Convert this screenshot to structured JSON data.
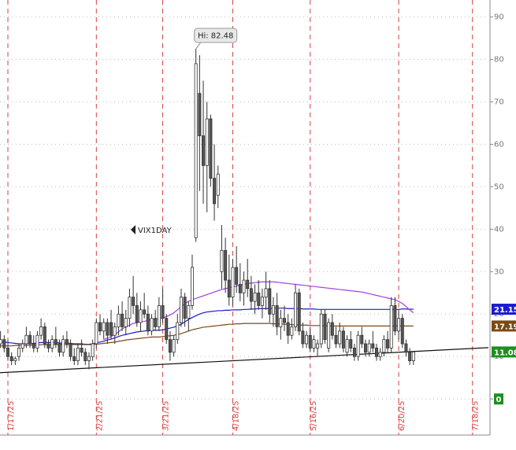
{
  "chart_data": {
    "type": "candlestick",
    "symbol": "VIX1DAY",
    "annotation": "Hi: 82.48",
    "categories": [
      null,
      null,
      "1/17/25",
      null,
      null,
      null,
      null,
      null,
      null,
      null,
      null,
      null,
      null,
      null,
      null,
      null,
      null,
      null,
      null,
      null,
      null,
      null,
      null,
      null,
      null,
      null,
      "2/21/25",
      null,
      null,
      null,
      null,
      null,
      null,
      null,
      null,
      null,
      null,
      null,
      null,
      null,
      null,
      null,
      null,
      null,
      "3/21/25",
      null,
      null,
      null,
      null,
      null,
      null,
      null,
      null,
      null,
      null,
      null,
      null,
      null,
      null,
      null,
      null,
      null,
      null,
      "4/18/25",
      null,
      null,
      null,
      null,
      null,
      null,
      null,
      null,
      null,
      null,
      null,
      null,
      null,
      null,
      null,
      null,
      null,
      null,
      null,
      null,
      "5/16/25",
      null,
      null,
      null,
      null,
      null,
      null,
      null,
      null,
      null,
      null,
      null,
      null,
      null,
      null,
      null,
      null,
      null,
      null,
      null,
      null,
      null,
      null,
      null,
      "6/20/25",
      null,
      null,
      null,
      null,
      null,
      null,
      null,
      null,
      null,
      null,
      null,
      null,
      null,
      null,
      null,
      null,
      null,
      null,
      null,
      "7/18/25"
    ],
    "open": [
      13,
      14,
      12,
      10,
      9,
      10,
      12,
      13,
      15,
      13,
      12,
      15,
      17,
      13,
      12,
      14,
      13,
      11,
      14,
      13,
      10,
      9,
      12,
      11,
      9,
      10,
      13,
      18,
      16,
      18,
      18,
      15,
      17,
      20,
      17,
      19,
      24,
      22,
      18,
      21,
      20,
      16,
      19,
      17,
      22,
      19,
      14,
      11,
      14,
      18,
      24,
      19,
      22,
      38,
      72,
      62,
      55,
      66,
      52,
      48,
      30,
      35,
      28,
      24,
      31,
      27,
      25,
      28,
      26,
      23,
      25,
      22,
      24,
      26,
      20,
      22,
      17,
      19,
      18,
      15,
      17,
      25,
      16,
      13,
      15,
      12,
      12,
      13,
      20,
      12,
      18,
      15,
      13,
      16,
      11,
      14,
      12,
      10,
      15,
      13,
      11,
      13,
      12,
      10,
      11,
      14,
      12,
      22,
      16,
      19,
      13,
      11,
      9,
      null,
      null,
      null,
      null,
      null,
      null,
      null,
      null,
      null,
      null,
      null,
      null,
      null,
      null,
      null,
      null
    ],
    "high": [
      16,
      15,
      14,
      11,
      10,
      13,
      14,
      17,
      16,
      15,
      16,
      19,
      18,
      14,
      15,
      17,
      14,
      15,
      16,
      14,
      12,
      13,
      14,
      12,
      11,
      14,
      19,
      20,
      19,
      19,
      21,
      18,
      22,
      23,
      21,
      26,
      29,
      25,
      23,
      25,
      22,
      20,
      21,
      24,
      26,
      20,
      16,
      15,
      20,
      26,
      25,
      23,
      34,
      82.48,
      81,
      75,
      70,
      67,
      60,
      55,
      41,
      38,
      34,
      33,
      36,
      32,
      30,
      33,
      29,
      27,
      28,
      26,
      30,
      28,
      24,
      25,
      21,
      22,
      20,
      19,
      27,
      26,
      18,
      16,
      17,
      15,
      14,
      21,
      21,
      19,
      20,
      17,
      18,
      17,
      15,
      16,
      13,
      16,
      17,
      14,
      14,
      16,
      13,
      12,
      15,
      16,
      24,
      24,
      21,
      20,
      14,
      12,
      11,
      null,
      null,
      null,
      null,
      null,
      null,
      null,
      null,
      null,
      null,
      null,
      null,
      null,
      null,
      null,
      null
    ],
    "low": [
      12,
      11,
      9,
      8,
      8,
      9,
      11,
      12,
      12,
      11,
      11,
      14,
      12,
      11,
      11,
      12,
      10,
      10,
      12,
      9,
      8,
      8,
      10,
      8,
      7,
      9,
      12,
      15,
      14,
      13,
      14,
      13,
      15,
      16,
      15,
      17,
      20,
      17,
      16,
      19,
      15,
      15,
      16,
      16,
      18,
      13,
      9,
      10,
      13,
      17,
      17,
      16,
      21,
      37,
      49,
      46,
      44,
      50,
      42,
      45,
      26,
      25,
      22,
      22,
      25,
      23,
      22,
      24,
      21,
      20,
      21,
      19,
      21,
      18,
      17,
      15,
      14,
      16,
      13,
      14,
      16,
      15,
      12,
      12,
      11,
      11,
      10,
      12,
      13,
      11,
      14,
      12,
      12,
      11,
      10,
      11,
      9,
      9,
      12,
      10,
      10,
      11,
      9,
      9,
      10,
      11,
      11,
      15,
      14,
      12,
      10,
      8,
      8,
      null,
      null,
      null,
      null,
      null,
      null,
      null,
      null,
      null,
      null,
      null,
      null,
      null,
      null,
      null,
      null
    ],
    "close": [
      14,
      12,
      10,
      9,
      9.5,
      12,
      13,
      15,
      13,
      12,
      15,
      17,
      13,
      12,
      14,
      13,
      11,
      14,
      13,
      10,
      9,
      12,
      11,
      9,
      10,
      13,
      18,
      16,
      18,
      15,
      15,
      17,
      20,
      17,
      19,
      24,
      22,
      18,
      21,
      20,
      16,
      19,
      17,
      22,
      19,
      14,
      11,
      14,
      18,
      24,
      19,
      22,
      31,
      79,
      62,
      55,
      66,
      52,
      46,
      53,
      35,
      28,
      24,
      31,
      27,
      25,
      28,
      26,
      23,
      25,
      22,
      24,
      26,
      20,
      22,
      17,
      19,
      18,
      15,
      17,
      25,
      16,
      13,
      15,
      12,
      14,
      13,
      20,
      14,
      18,
      15,
      13,
      16,
      12,
      14,
      12,
      10,
      15,
      13,
      11,
      13,
      12,
      10,
      11,
      14,
      12,
      22,
      16,
      19,
      13,
      11,
      9,
      11.08,
      null,
      null,
      null,
      null,
      null,
      null,
      null,
      null,
      null,
      null,
      null,
      null,
      null,
      null,
      null,
      null
    ],
    "up_color": "#ffffff",
    "down_color": "#555555",
    "candle_outline": "#333333",
    "last_price_color": "#1e8f1e",
    "overlays": [
      {
        "color": "#1c1ccc",
        "values": [
          13.5,
          13.4,
          13.3,
          13.2,
          13.1,
          13.0,
          13.0,
          13.0,
          13.1,
          13.1,
          13.2,
          13.3,
          13.3,
          13.3,
          13.3,
          13.3,
          13.2,
          13.2,
          13.2,
          13.1,
          13.0,
          13.0,
          13.0,
          12.9,
          12.9,
          13.0,
          13.2,
          13.4,
          13.6,
          13.9,
          14.1,
          14.4,
          14.7,
          15.0,
          15.2,
          15.4,
          15.6,
          15.8,
          15.9,
          16.0,
          16.1,
          16.2,
          16.2,
          16.2,
          16.3,
          16.5,
          16.7,
          16.9,
          17.2,
          17.6,
          18.2,
          18.7,
          19.2,
          19.6,
          20.0,
          20.3,
          20.5,
          20.6,
          20.7,
          20.8,
          20.8,
          20.9,
          20.9,
          21.0,
          21.0,
          21.0,
          21.1,
          21.1,
          21.2,
          21.2,
          21.3,
          21.3,
          21.3,
          21.3,
          21.4,
          21.4,
          21.4,
          21.4,
          21.3,
          21.3,
          21.3,
          21.3,
          21.2,
          21.2,
          21.2,
          21.2,
          21.1,
          21.1,
          21.1,
          21.1,
          21.1,
          21.1,
          21.1,
          21.1,
          21.1,
          21.1,
          21.1,
          21.1,
          21.1,
          21.1,
          21.1,
          21.1,
          21.1,
          21.1,
          21.1,
          21.1,
          21.1,
          21.1,
          21.1,
          21.2,
          21.2,
          21.15,
          21.15,
          null,
          null,
          null,
          null,
          null,
          null,
          null,
          null,
          null,
          null,
          null,
          null,
          null,
          null,
          null,
          null
        ],
        "tag": true
      },
      {
        "color": "#7a4a12",
        "values": [
          12.5,
          12.5,
          12.5,
          12.5,
          12.6,
          12.6,
          12.6,
          12.6,
          12.7,
          12.7,
          12.7,
          12.8,
          12.8,
          12.8,
          12.8,
          12.8,
          12.8,
          12.8,
          12.8,
          12.8,
          12.8,
          12.8,
          12.8,
          12.8,
          12.8,
          12.8,
          12.9,
          13.0,
          13.1,
          13.2,
          13.3,
          13.4,
          13.6,
          13.7,
          13.9,
          14.0,
          14.1,
          14.2,
          14.3,
          14.4,
          14.5,
          14.6,
          14.6,
          14.6,
          14.7,
          14.8,
          14.9,
          15.0,
          15.2,
          15.4,
          15.7,
          16.0,
          16.3,
          16.5,
          16.7,
          16.9,
          17.0,
          17.1,
          17.2,
          17.3,
          17.4,
          17.5,
          17.6,
          17.6,
          17.7,
          17.7,
          17.8,
          17.8,
          17.8,
          17.8,
          17.8,
          17.8,
          17.8,
          17.8,
          17.7,
          17.7,
          17.7,
          17.6,
          17.6,
          17.5,
          17.5,
          17.4,
          17.4,
          17.4,
          17.3,
          17.3,
          17.3,
          17.3,
          17.2,
          17.2,
          17.2,
          17.2,
          17.2,
          17.2,
          17.2,
          17.2,
          17.2,
          17.2,
          17.2,
          17.2,
          17.2,
          17.2,
          17.2,
          17.2,
          17.2,
          17.2,
          17.2,
          17.2,
          17.2,
          17.2,
          17.2,
          17.19,
          17.19,
          null,
          null,
          null,
          null,
          null,
          null,
          null,
          null,
          null,
          null,
          null,
          null,
          null,
          null,
          null,
          null
        ],
        "tag": true
      },
      {
        "color": "#a040e0",
        "values": [
          null,
          null,
          null,
          null,
          null,
          null,
          null,
          null,
          null,
          null,
          null,
          null,
          null,
          null,
          null,
          null,
          null,
          null,
          null,
          null,
          null,
          null,
          null,
          null,
          null,
          null,
          null,
          null,
          14.0,
          14.3,
          14.7,
          15.2,
          15.8,
          16.5,
          17.0,
          17.4,
          17.8,
          18.0,
          18.2,
          18.3,
          18.5,
          18.7,
          18.8,
          18.9,
          19.1,
          19.4,
          19.8,
          20.3,
          21.0,
          21.8,
          22.5,
          23.0,
          23.4,
          23.7,
          24.0,
          24.3,
          24.6,
          24.9,
          25.2,
          25.5,
          25.8,
          26.0,
          26.2,
          26.4,
          26.6,
          26.8,
          27.0,
          27.2,
          27.3,
          27.4,
          27.5,
          27.6,
          27.6,
          27.6,
          27.6,
          27.5,
          27.4,
          27.3,
          27.2,
          27.1,
          27.0,
          26.9,
          26.8,
          26.7,
          26.6,
          26.5,
          26.4,
          26.3,
          26.2,
          26.1,
          26.0,
          25.9,
          25.8,
          25.7,
          25.6,
          25.5,
          25.4,
          25.3,
          25.2,
          25.0,
          24.8,
          24.6,
          24.4,
          24.2,
          24.0,
          23.8,
          23.6,
          23.4,
          23.0,
          22.5,
          21.8,
          21.0,
          20.3,
          null,
          null,
          null,
          null,
          null,
          null,
          null,
          null,
          null,
          null,
          null,
          null,
          null,
          null,
          null,
          null
        ],
        "tag": false
      }
    ],
    "trendline": {
      "color": "#111111",
      "values": [
        6.2,
        11.9
      ]
    },
    "ylim": [
      -8.5,
      94
    ],
    "yticks": [
      0,
      10,
      20,
      30,
      40,
      50,
      60,
      70,
      80,
      90
    ],
    "grid": true,
    "date_line_color": "#d94040"
  }
}
